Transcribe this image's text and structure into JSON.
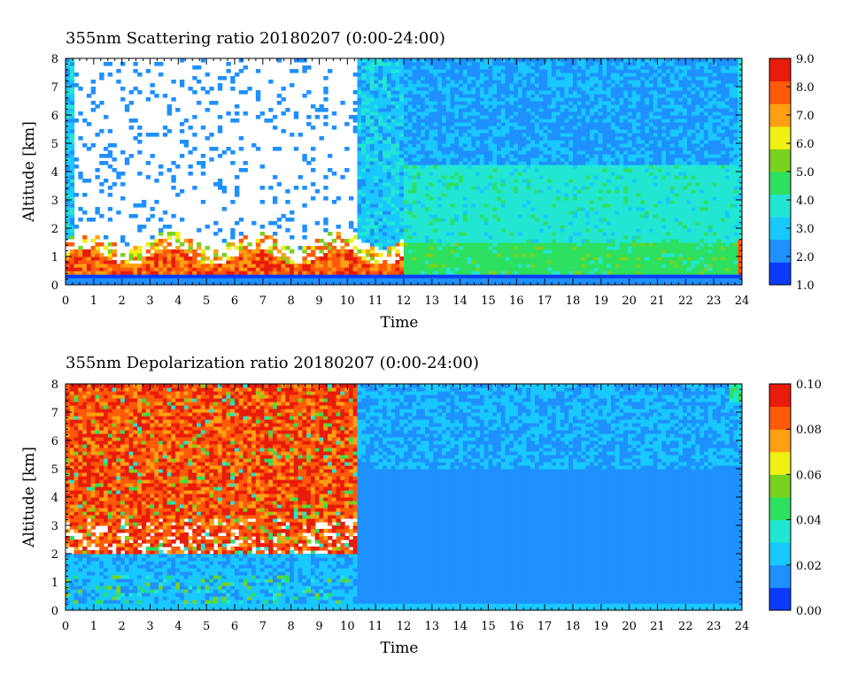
{
  "chart_data": [
    {
      "type": "heatmap",
      "title": "355nm Scattering ratio  20180207 (0:00-24:00)",
      "xlabel": "Time",
      "ylabel": "Altitude [km]",
      "xlim": [
        0,
        24
      ],
      "ylim": [
        0,
        8
      ],
      "x_ticks": [
        "0",
        "1",
        "2",
        "3",
        "4",
        "5",
        "6",
        "7",
        "8",
        "9",
        "10",
        "11",
        "12",
        "13",
        "14",
        "15",
        "16",
        "17",
        "18",
        "19",
        "20",
        "21",
        "22",
        "23",
        "24"
      ],
      "y_ticks": [
        "0",
        "1",
        "2",
        "3",
        "4",
        "5",
        "6",
        "7",
        "8"
      ],
      "colorbar": {
        "range": [
          1.0,
          9.0
        ],
        "ticks": [
          "1.0",
          "2.0",
          "3.0",
          "4.0",
          "5.0",
          "6.0",
          "7.0",
          "8.0",
          "9.0"
        ],
        "colors": [
          "#0a3cff",
          "#1e90ff",
          "#19c8ff",
          "#22e6d2",
          "#2ee060",
          "#7ad21e",
          "#f0f014",
          "#ffa012",
          "#ff5a0a",
          "#e81c0a"
        ]
      },
      "features": {
        "blank_above_cloud_hours": [
          0.3,
          10.4
        ],
        "cloud_base_km": [
          1.6,
          2.0
        ],
        "low_layer_strong_backscatter_km": [
          0.3,
          1.8
        ],
        "uniform_field_hours": [
          12.5,
          23.8
        ],
        "uniform_field_value_range": [
          2.5,
          4.2
        ]
      }
    },
    {
      "type": "heatmap",
      "title": "355nm Depolarization ratio  20180207 (0:00-24:00)",
      "xlabel": "Time",
      "ylabel": "Altitude [km]",
      "xlim": [
        0,
        24
      ],
      "ylim": [
        0,
        8
      ],
      "x_ticks": [
        "0",
        "1",
        "2",
        "3",
        "4",
        "5",
        "6",
        "7",
        "8",
        "9",
        "10",
        "11",
        "12",
        "13",
        "14",
        "15",
        "16",
        "17",
        "18",
        "19",
        "20",
        "21",
        "22",
        "23",
        "24"
      ],
      "y_ticks": [
        "0",
        "1",
        "2",
        "3",
        "4",
        "5",
        "6",
        "7",
        "8"
      ],
      "colorbar": {
        "range": [
          0.0,
          0.1
        ],
        "ticks": [
          "0.00",
          "0.02",
          "0.04",
          "0.06",
          "0.08",
          "0.10"
        ],
        "colors": [
          "#0a3cff",
          "#1e90ff",
          "#19c8ff",
          "#22e6d2",
          "#2ee060",
          "#7ad21e",
          "#f0f014",
          "#ffa012",
          "#ff5a0a",
          "#e81c0a"
        ]
      },
      "features": {
        "high_depol_hours": [
          0,
          10.3
        ],
        "high_depol_altitude_km": [
          2.0,
          8.0
        ],
        "background_value": 0.015
      }
    }
  ]
}
